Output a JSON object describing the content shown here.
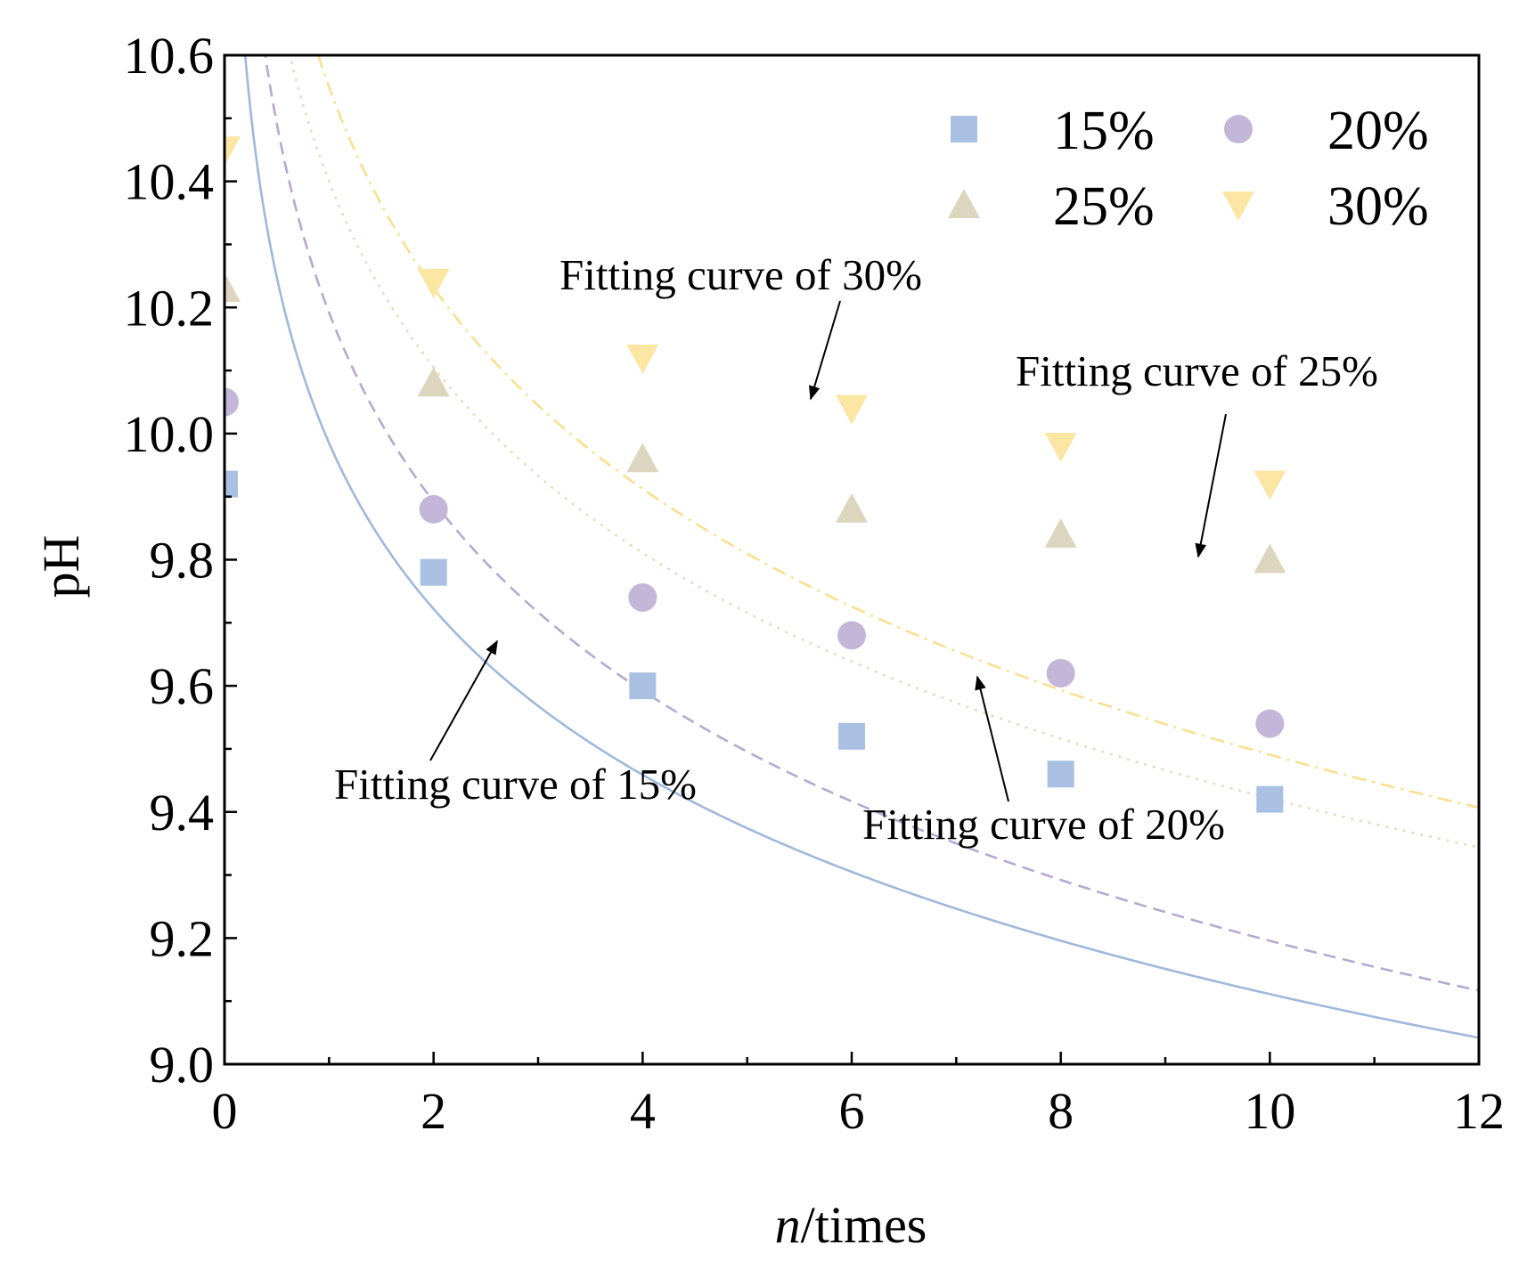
{
  "chart_data": {
    "type": "scatter",
    "title": "",
    "xlabel_italic": "n",
    "xlabel_rest": "/times",
    "ylabel": "pH",
    "xlim": [
      0,
      12
    ],
    "ylim": [
      9.0,
      10.6
    ],
    "xticks": [
      "0",
      "2",
      "4",
      "6",
      "8",
      "10",
      "12"
    ],
    "yticks": [
      "9.0",
      "9.2",
      "9.4",
      "9.6",
      "9.8",
      "10.0",
      "10.2",
      "10.4",
      "10.6"
    ],
    "legend_position": "top-right",
    "series": [
      {
        "name": "15%",
        "marker": "square",
        "color": "#a9c0e2",
        "x": [
          0,
          2,
          4,
          6,
          8,
          10
        ],
        "y": [
          9.92,
          9.78,
          9.6,
          9.52,
          9.46,
          9.42
        ],
        "fit": {
          "a": 9.985,
          "b": -0.3795,
          "style": "solid"
        }
      },
      {
        "name": "20%",
        "marker": "circle",
        "color": "#c3b6d8",
        "x": [
          0,
          2,
          4,
          6,
          8,
          10
        ],
        "y": [
          10.05,
          9.88,
          9.74,
          9.68,
          9.62,
          9.54
        ],
        "fit": {
          "a": 10.192,
          "b": -0.4327,
          "style": "dashed"
        }
      },
      {
        "name": "25%",
        "marker": "triangle-up",
        "color": "#ddd6be",
        "x": [
          0,
          2,
          4,
          6,
          8,
          10
        ],
        "y": [
          10.23,
          10.08,
          9.96,
          9.88,
          9.84,
          9.8
        ],
        "fit": {
          "a": 10.4,
          "b": -0.425,
          "style": "dotted"
        }
      },
      {
        "name": "30%",
        "marker": "triangle-down",
        "color": "#fbe6a4",
        "x": [
          0,
          2,
          4,
          6,
          8,
          10
        ],
        "y": [
          10.45,
          10.24,
          10.12,
          10.04,
          9.98,
          9.92
        ],
        "fit": {
          "a": 10.55,
          "b": -0.46,
          "style": "dashdot"
        }
      }
    ],
    "annotations": [
      {
        "text": "Fitting curve of 30%",
        "series": "30%"
      },
      {
        "text": "Fitting curve of 25%",
        "series": "25%"
      },
      {
        "text": "Fitting curve of 15%",
        "series": "15%"
      },
      {
        "text": "Fitting curve of 20%",
        "series": "20%"
      }
    ]
  }
}
